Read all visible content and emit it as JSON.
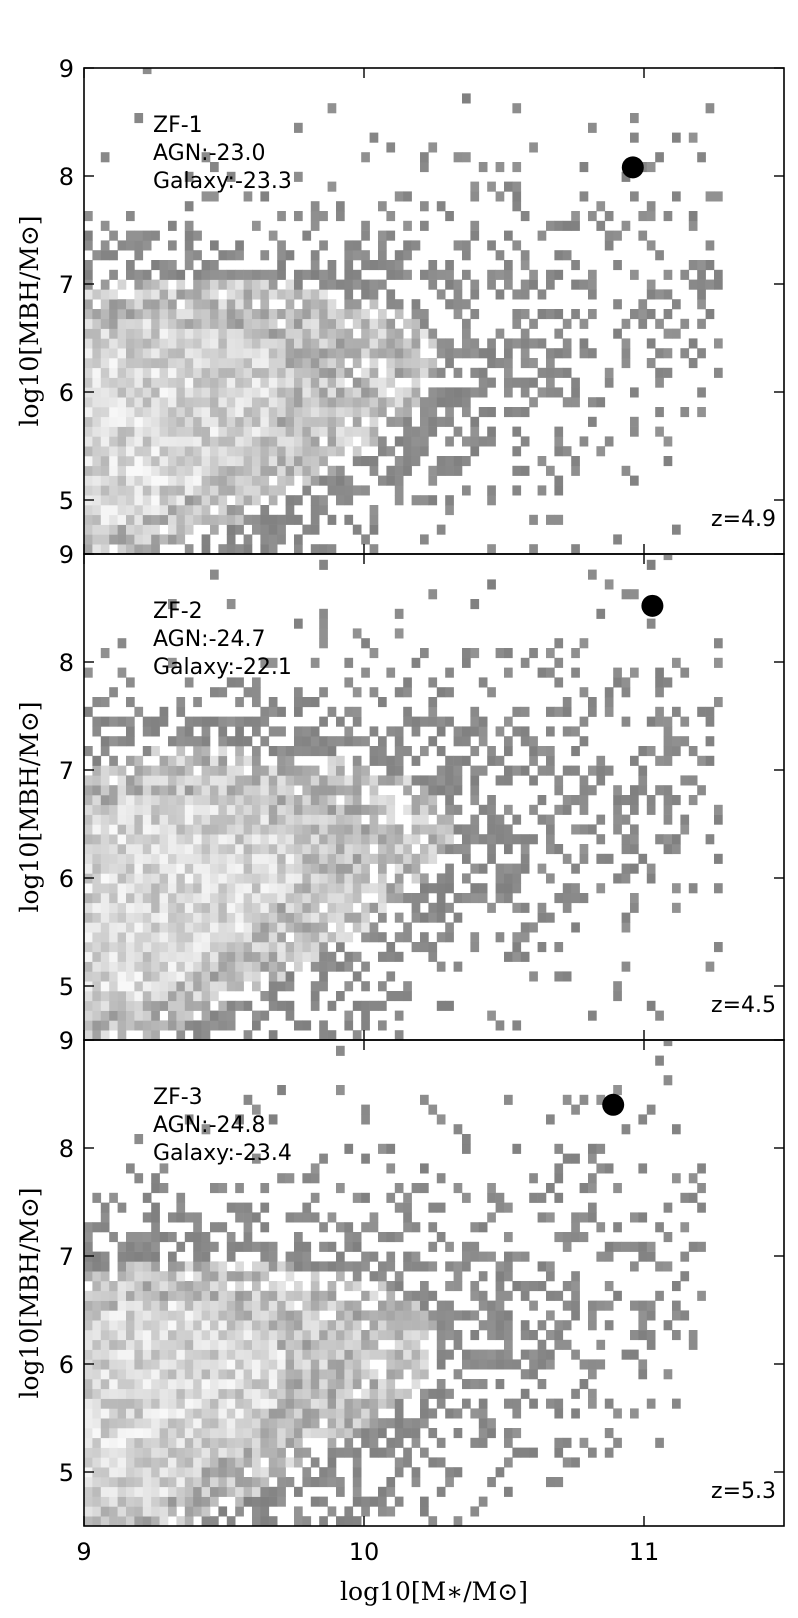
{
  "chart_data": [
    {
      "type": "heatmap",
      "panel_label": "ZF-1",
      "agn_text": "AGN:-23.0",
      "galaxy_text": "Galaxy:-23.3",
      "redshift_text": "z=4.9",
      "xlim": [
        9,
        11.5
      ],
      "ylim": [
        4.5,
        9
      ],
      "yticks": [
        "5",
        "6",
        "7",
        "8",
        "9"
      ],
      "ylabel": "log10[MBH/M⊙]",
      "marker": {
        "x": 10.96,
        "y": 8.08
      },
      "density": {
        "center": [
          9.2,
          5.75
        ],
        "max_x": 11.25,
        "slope": 0.52
      }
    },
    {
      "type": "heatmap",
      "panel_label": "ZF-2",
      "agn_text": "AGN:-24.7",
      "galaxy_text": "Galaxy:-22.1",
      "redshift_text": "z=4.5",
      "xlim": [
        9,
        11.5
      ],
      "ylim": [
        4.5,
        9
      ],
      "yticks": [
        "5",
        "6",
        "7",
        "8",
        "9"
      ],
      "ylabel": "log10[MBH/M⊙]",
      "marker": {
        "x": 11.03,
        "y": 8.52
      },
      "density": {
        "center": [
          9.25,
          5.85
        ],
        "max_x": 11.25,
        "slope": 0.6
      }
    },
    {
      "type": "heatmap",
      "panel_label": "ZF-3",
      "agn_text": "AGN:-24.8",
      "galaxy_text": "Galaxy:-23.4",
      "redshift_text": "z=5.3",
      "xlim": [
        9,
        11.5
      ],
      "ylim": [
        4.5,
        9
      ],
      "yticks": [
        "5",
        "6",
        "7",
        "8",
        "9"
      ],
      "ylabel": "log10[MBH/M⊙]",
      "marker": {
        "x": 10.89,
        "y": 8.4
      },
      "density": {
        "center": [
          9.2,
          5.65
        ],
        "max_x": 11.2,
        "slope": 0.55
      }
    }
  ],
  "xaxis": {
    "ticks": [
      "9",
      "10",
      "11"
    ],
    "label": "log10[M∗/M⊙]"
  },
  "colors": {
    "marker": "#000000",
    "bin_dark": "#808080",
    "bin_light": "#f2f2f2"
  }
}
